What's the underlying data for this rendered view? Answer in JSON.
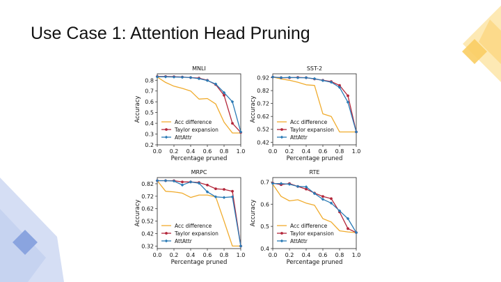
{
  "slide": {
    "title": "Use Case 1: Attention Head Pruning"
  },
  "colors": {
    "acc_difference": "#f0ab2c",
    "taylor_expansion": "#b3263a",
    "attattr": "#2a7ab5",
    "deco_yellow": "#fbd784",
    "deco_blue": "#a9bce6"
  },
  "chart_data": [
    {
      "type": "line",
      "title": "MNLI",
      "xlabel": "Percentage pruned",
      "ylabel": "Accuracy",
      "xlim": [
        0.0,
        1.0
      ],
      "ylim": [
        0.2,
        0.86
      ],
      "x_ticks": [
        "0.0",
        "0.2",
        "0.4",
        "0.6",
        "0.8",
        "1.0"
      ],
      "y_ticks": [
        "0.2",
        "0.3",
        "0.4",
        "0.5",
        "0.6",
        "0.7",
        "0.8"
      ],
      "legend_position": "lower-left",
      "series": [
        {
          "name": "Acc difference",
          "color": "#f0ab2c",
          "marker": "none",
          "x": [
            0.0,
            0.1,
            0.2,
            0.3,
            0.4,
            0.5,
            0.6,
            0.7,
            0.8,
            0.9,
            1.0
          ],
          "y": [
            0.83,
            0.78,
            0.745,
            0.725,
            0.7,
            0.625,
            0.63,
            0.58,
            0.41,
            0.31,
            0.31
          ]
        },
        {
          "name": "Taylor expansion",
          "color": "#b3263a",
          "marker": "dot",
          "x": [
            0.0,
            0.1,
            0.2,
            0.3,
            0.4,
            0.5,
            0.6,
            0.7,
            0.8,
            0.9,
            1.0
          ],
          "y": [
            0.835,
            0.835,
            0.833,
            0.83,
            0.825,
            0.82,
            0.8,
            0.76,
            0.66,
            0.4,
            0.315
          ]
        },
        {
          "name": "AttAttr",
          "color": "#2a7ab5",
          "marker": "diamond",
          "x": [
            0.0,
            0.1,
            0.2,
            0.3,
            0.4,
            0.5,
            0.6,
            0.7,
            0.8,
            0.9,
            1.0
          ],
          "y": [
            0.832,
            0.832,
            0.83,
            0.828,
            0.825,
            0.815,
            0.798,
            0.765,
            0.685,
            0.6,
            0.32
          ]
        }
      ]
    },
    {
      "type": "line",
      "title": "SST-2",
      "xlabel": "Percentage pruned",
      "ylabel": "Accuracy",
      "xlim": [
        0.0,
        1.0
      ],
      "ylim": [
        0.4,
        0.95
      ],
      "x_ticks": [
        "0.0",
        "0.2",
        "0.4",
        "0.6",
        "0.8",
        "1.0"
      ],
      "y_ticks": [
        "0.42",
        "0.52",
        "0.62",
        "0.72",
        "0.82",
        "0.92"
      ],
      "legend_position": "lower-left",
      "series": [
        {
          "name": "Acc difference",
          "color": "#f0ab2c",
          "marker": "none",
          "x": [
            0.0,
            0.1,
            0.2,
            0.3,
            0.4,
            0.5,
            0.6,
            0.7,
            0.8,
            0.9,
            1.0
          ],
          "y": [
            0.925,
            0.91,
            0.9,
            0.885,
            0.865,
            0.86,
            0.64,
            0.62,
            0.5,
            0.5,
            0.5
          ]
        },
        {
          "name": "Taylor expansion",
          "color": "#b3263a",
          "marker": "dot",
          "x": [
            0.0,
            0.1,
            0.2,
            0.3,
            0.4,
            0.5,
            0.6,
            0.7,
            0.8,
            0.9,
            1.0
          ],
          "y": [
            0.925,
            0.92,
            0.92,
            0.922,
            0.92,
            0.91,
            0.9,
            0.89,
            0.86,
            0.78,
            0.5
          ]
        },
        {
          "name": "AttAttr",
          "color": "#2a7ab5",
          "marker": "diamond",
          "x": [
            0.0,
            0.1,
            0.2,
            0.3,
            0.4,
            0.5,
            0.6,
            0.7,
            0.8,
            0.9,
            1.0
          ],
          "y": [
            0.925,
            0.92,
            0.922,
            0.92,
            0.92,
            0.912,
            0.898,
            0.885,
            0.845,
            0.73,
            0.5
          ]
        }
      ]
    },
    {
      "type": "line",
      "title": "MRPC",
      "xlabel": "Percentage pruned",
      "ylabel": "Accuracy",
      "xlim": [
        0.0,
        1.0
      ],
      "ylim": [
        0.3,
        0.87
      ],
      "x_ticks": [
        "0.0",
        "0.2",
        "0.4",
        "0.6",
        "0.8",
        "1.0"
      ],
      "y_ticks": [
        "0.32",
        "0.42",
        "0.52",
        "0.62",
        "0.72",
        "0.82"
      ],
      "legend_position": "lower-left",
      "series": [
        {
          "name": "Acc difference",
          "color": "#f0ab2c",
          "marker": "none",
          "x": [
            0.0,
            0.1,
            0.2,
            0.3,
            0.4,
            0.5,
            0.6,
            0.7,
            0.8,
            0.9,
            1.0
          ],
          "y": [
            0.845,
            0.76,
            0.755,
            0.745,
            0.71,
            0.73,
            0.73,
            0.715,
            0.52,
            0.32,
            0.32
          ]
        },
        {
          "name": "Taylor expansion",
          "color": "#b3263a",
          "marker": "dot",
          "x": [
            0.0,
            0.1,
            0.2,
            0.3,
            0.4,
            0.5,
            0.6,
            0.7,
            0.8,
            0.9,
            1.0
          ],
          "y": [
            0.845,
            0.845,
            0.845,
            0.835,
            0.835,
            0.83,
            0.81,
            0.78,
            0.775,
            0.76,
            0.32
          ]
        },
        {
          "name": "AttAttr",
          "color": "#2a7ab5",
          "marker": "diamond",
          "x": [
            0.0,
            0.1,
            0.2,
            0.3,
            0.4,
            0.5,
            0.6,
            0.7,
            0.8,
            0.9,
            1.0
          ],
          "y": [
            0.845,
            0.845,
            0.842,
            0.81,
            0.835,
            0.825,
            0.755,
            0.715,
            0.71,
            0.715,
            0.32
          ]
        }
      ]
    },
    {
      "type": "line",
      "title": "RTE",
      "xlabel": "Percentage pruned",
      "ylabel": "Accuracy",
      "xlim": [
        0.0,
        1.0
      ],
      "ylim": [
        0.4,
        0.72
      ],
      "x_ticks": [
        "0.0",
        "0.2",
        "0.4",
        "0.6",
        "0.8",
        "1.0"
      ],
      "y_ticks": [
        "0.4",
        "0.5",
        "0.6",
        "0.7"
      ],
      "legend_position": "lower-left",
      "series": [
        {
          "name": "Acc difference",
          "color": "#f0ab2c",
          "marker": "none",
          "x": [
            0.0,
            0.1,
            0.2,
            0.3,
            0.4,
            0.5,
            0.6,
            0.7,
            0.8,
            0.9,
            1.0
          ],
          "y": [
            0.69,
            0.635,
            0.615,
            0.62,
            0.605,
            0.595,
            0.535,
            0.52,
            0.48,
            0.475,
            0.472
          ]
        },
        {
          "name": "Taylor expansion",
          "color": "#b3263a",
          "marker": "dot",
          "x": [
            0.0,
            0.1,
            0.2,
            0.3,
            0.4,
            0.5,
            0.6,
            0.7,
            0.8,
            0.9,
            1.0
          ],
          "y": [
            0.695,
            0.688,
            0.693,
            0.68,
            0.668,
            0.65,
            0.635,
            0.625,
            0.565,
            0.49,
            0.472
          ]
        },
        {
          "name": "AttAttr",
          "color": "#2a7ab5",
          "marker": "diamond",
          "x": [
            0.0,
            0.1,
            0.2,
            0.3,
            0.4,
            0.5,
            0.6,
            0.7,
            0.8,
            0.9,
            1.0
          ],
          "y": [
            0.693,
            0.693,
            0.69,
            0.68,
            0.678,
            0.648,
            0.622,
            0.605,
            0.57,
            0.535,
            0.472
          ]
        }
      ]
    }
  ]
}
